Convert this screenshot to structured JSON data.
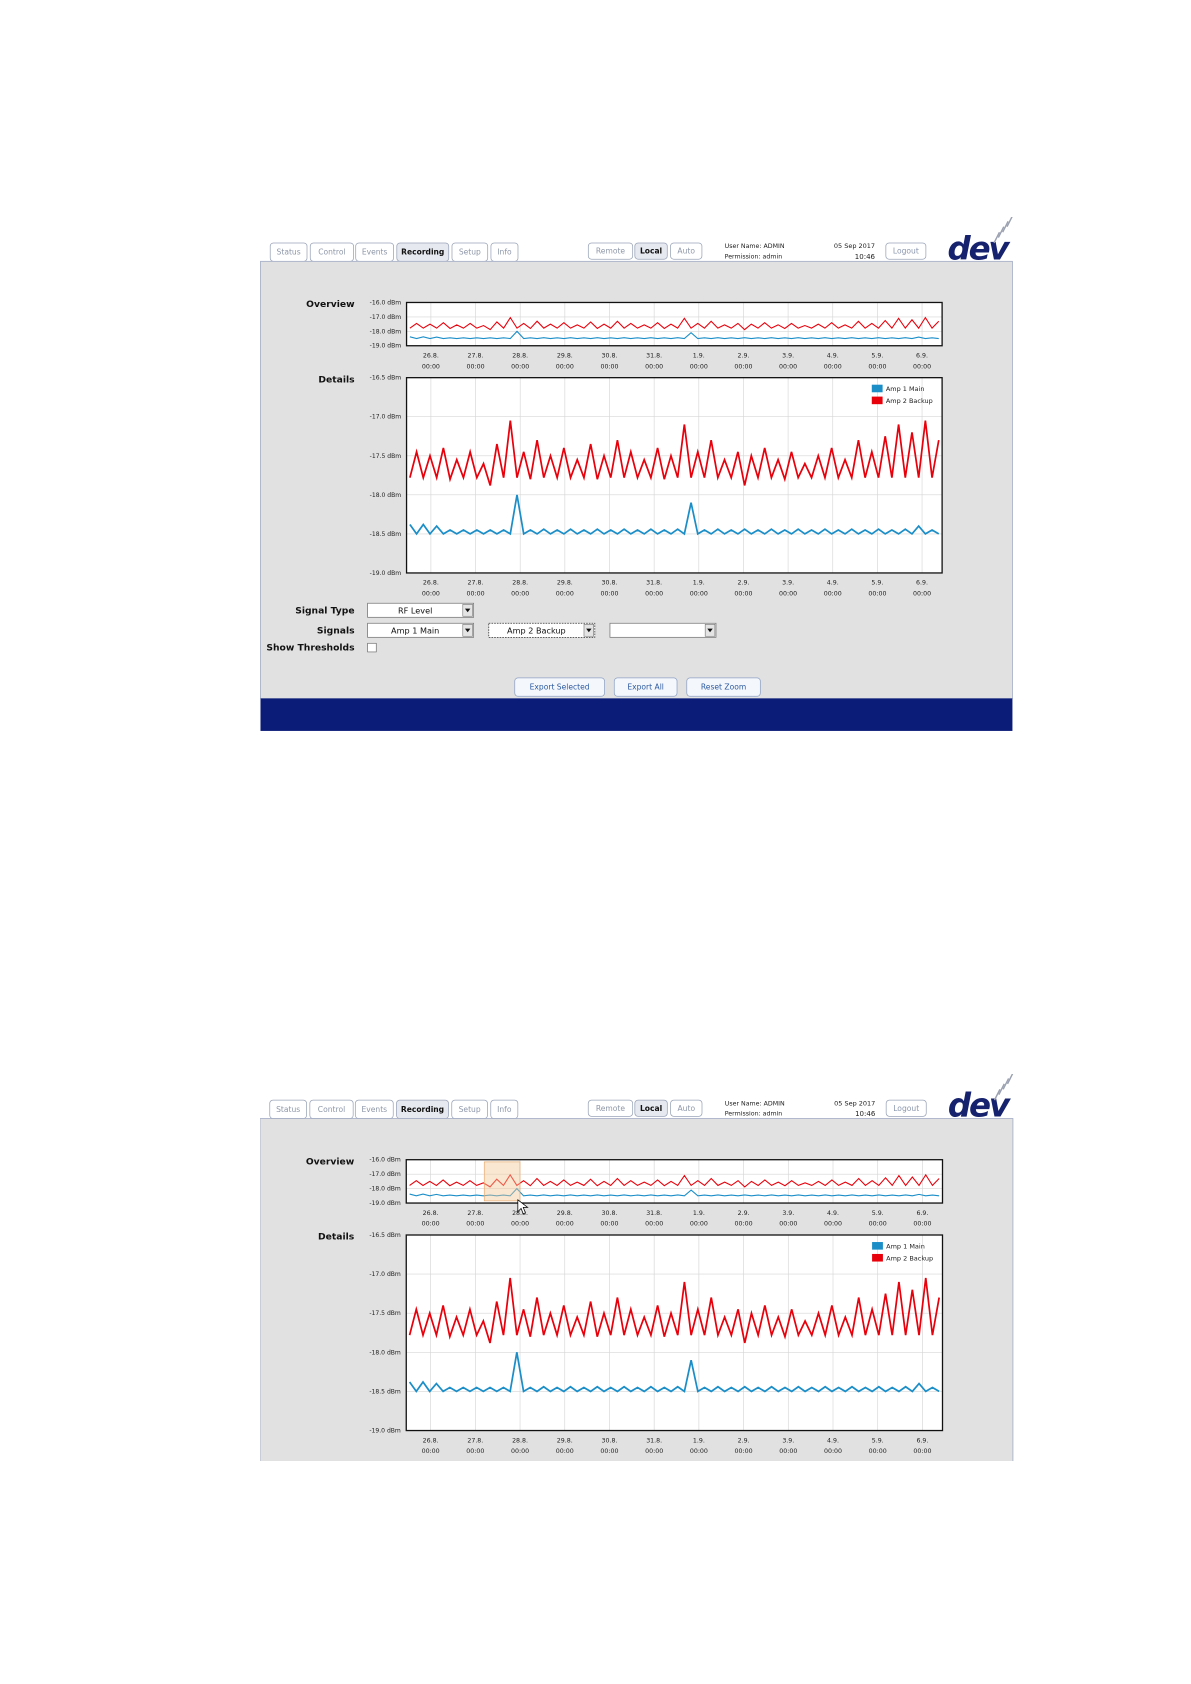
{
  "tabs": [
    "Status",
    "Control",
    "Events",
    "Recording",
    "Setup",
    "Info"
  ],
  "active_tab": 3,
  "modes": [
    "Remote",
    "Local",
    "Auto"
  ],
  "active_mode": 1,
  "user_name": "User Name: ADMIN",
  "permission": "Permission: admin",
  "date": "05 Sep 2017",
  "time": "10:46",
  "logout": "Logout",
  "logo": "dev",
  "chart_data": {
    "type": "line",
    "xticks": [
      {
        "date": "26.8.",
        "time": "00:00"
      },
      {
        "date": "27.8.",
        "time": "00:00"
      },
      {
        "date": "28.8.",
        "time": "00:00"
      },
      {
        "date": "29.8.",
        "time": "00:00"
      },
      {
        "date": "30.8.",
        "time": "00:00"
      },
      {
        "date": "31.8.",
        "time": "00:00"
      },
      {
        "date": "1.9.",
        "time": "00:00"
      },
      {
        "date": "2.9.",
        "time": "00:00"
      },
      {
        "date": "3.9.",
        "time": "00:00"
      },
      {
        "date": "4.9.",
        "time": "00:00"
      },
      {
        "date": "5.9.",
        "time": "00:00"
      },
      {
        "date": "6.9.",
        "time": "00:00"
      }
    ],
    "grid": true,
    "overview": {
      "title": "Overview",
      "ylim": [
        -19,
        -16
      ],
      "yticks": [
        {
          "value": -16,
          "label": "-16.0 dBm"
        },
        {
          "value": -17,
          "label": "-17.0 dBm"
        },
        {
          "value": -18,
          "label": "-18.0 dBm"
        },
        {
          "value": -19,
          "label": "-19.0 dBm"
        }
      ]
    },
    "details": {
      "title": "Details",
      "ylim": [
        -19,
        -16.5
      ],
      "legend": "upper right",
      "yticks": [
        {
          "value": -16.5,
          "label": "-16.5 dBm"
        },
        {
          "value": -17,
          "label": "-17.0 dBm"
        },
        {
          "value": -17.5,
          "label": "-17.5 dBm"
        },
        {
          "value": -18,
          "label": "-18.0 dBm"
        },
        {
          "value": -18.5,
          "label": "-18.5 dBm"
        },
        {
          "value": -19,
          "label": "-19.0 dBm"
        }
      ]
    },
    "series": [
      {
        "name": "Amp 1 Main",
        "color": "#1b8ec8",
        "values": [
          -18.38,
          -18.5,
          -18.38,
          -18.5,
          -18.4,
          -18.5,
          -18.45,
          -18.5,
          -18.45,
          -18.5,
          -18.45,
          -18.5,
          -18.45,
          -18.5,
          -18.45,
          -18.5,
          -18.0,
          -18.5,
          -18.45,
          -18.5,
          -18.44,
          -18.5,
          -18.45,
          -18.5,
          -18.44,
          -18.5,
          -18.45,
          -18.5,
          -18.44,
          -18.5,
          -18.45,
          -18.5,
          -18.44,
          -18.5,
          -18.45,
          -18.5,
          -18.44,
          -18.5,
          -18.45,
          -18.5,
          -18.44,
          -18.5,
          -18.1,
          -18.5,
          -18.45,
          -18.5,
          -18.44,
          -18.5,
          -18.45,
          -18.5,
          -18.44,
          -18.5,
          -18.45,
          -18.5,
          -18.44,
          -18.5,
          -18.45,
          -18.5,
          -18.44,
          -18.5,
          -18.45,
          -18.5,
          -18.44,
          -18.5,
          -18.45,
          -18.5,
          -18.44,
          -18.5,
          -18.45,
          -18.5,
          -18.44,
          -18.5,
          -18.45,
          -18.5,
          -18.44,
          -18.5,
          -18.4,
          -18.5,
          -18.45,
          -18.5
        ]
      },
      {
        "name": "Amp 2 Backup",
        "color": "#e8000b",
        "values": [
          -17.78,
          -17.45,
          -17.78,
          -17.5,
          -17.78,
          -17.4,
          -17.8,
          -17.55,
          -17.78,
          -17.45,
          -17.78,
          -17.6,
          -17.88,
          -17.35,
          -17.78,
          -17.05,
          -17.78,
          -17.45,
          -17.8,
          -17.3,
          -17.78,
          -17.5,
          -17.78,
          -17.4,
          -17.78,
          -17.55,
          -17.78,
          -17.35,
          -17.8,
          -17.5,
          -17.78,
          -17.3,
          -17.78,
          -17.45,
          -17.78,
          -17.55,
          -17.78,
          -17.4,
          -17.8,
          -17.5,
          -17.78,
          -17.1,
          -17.78,
          -17.45,
          -17.78,
          -17.3,
          -17.78,
          -17.55,
          -17.78,
          -17.45,
          -17.88,
          -17.5,
          -17.78,
          -17.4,
          -17.78,
          -17.55,
          -17.8,
          -17.45,
          -17.78,
          -17.6,
          -17.78,
          -17.5,
          -17.78,
          -17.4,
          -17.78,
          -17.55,
          -17.78,
          -17.3,
          -17.78,
          -17.45,
          -17.78,
          -17.25,
          -17.78,
          -17.1,
          -17.78,
          -17.2,
          -17.78,
          -17.05,
          -17.78,
          -17.3
        ]
      }
    ]
  },
  "form": {
    "signal_type_label": "Signal Type",
    "signal_type": "RF Level",
    "signals_label": "Signals",
    "signal_1": "Amp 1 Main",
    "signal_2": "Amp 2 Backup",
    "show_thresholds_label": "Show Thresholds"
  },
  "buttons": [
    "Export Selected",
    "Export All",
    "Reset Zoom"
  ]
}
